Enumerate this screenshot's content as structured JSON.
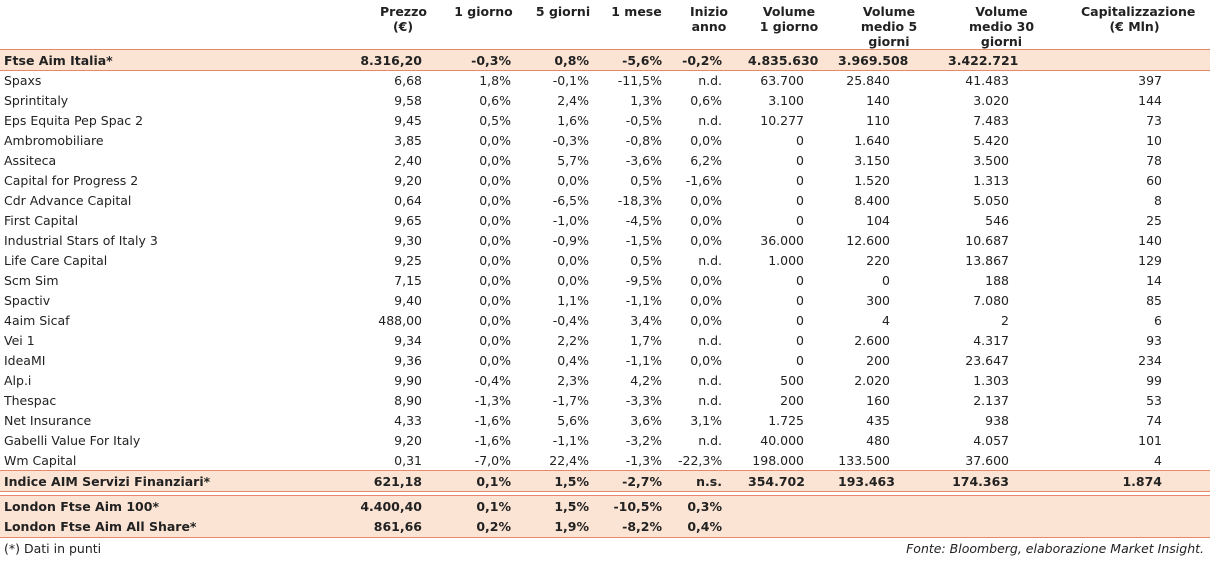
{
  "headers": {
    "name": "",
    "price": "Prezzo (€)",
    "d1": "1 giorno",
    "d5": "5 giorni",
    "m1": "1 mese",
    "ytd": "Inizio anno",
    "v1": "Volume 1 giorno",
    "v5": "Volume medio 5 giorni",
    "v30": "Volume medio 30 giorni",
    "cap": "Capitalizzazione (€ Mln)"
  },
  "top_index": {
    "name": "Ftse Aim Italia*",
    "price": "8.316,20",
    "d1": "-0,3%",
    "d5": "0,8%",
    "m1": "-5,6%",
    "ytd": "-0,2%",
    "v1": "4.835.630",
    "v5": "3.969.508",
    "v30": "3.422.721",
    "cap": ""
  },
  "rows": [
    {
      "name": "Spaxs",
      "price": "6,68",
      "d1": "1,8%",
      "d5": "-0,1%",
      "m1": "-11,5%",
      "ytd": "n.d.",
      "v1": "63.700",
      "v5": "25.840",
      "v30": "41.483",
      "cap": "397"
    },
    {
      "name": "Sprintitaly",
      "price": "9,58",
      "d1": "0,6%",
      "d5": "2,4%",
      "m1": "1,3%",
      "ytd": "0,6%",
      "v1": "3.100",
      "v5": "140",
      "v30": "3.020",
      "cap": "144"
    },
    {
      "name": "Eps Equita Pep Spac 2",
      "price": "9,45",
      "d1": "0,5%",
      "d5": "1,6%",
      "m1": "-0,5%",
      "ytd": "n.d.",
      "v1": "10.277",
      "v5": "110",
      "v30": "7.483",
      "cap": "73"
    },
    {
      "name": "Ambromobiliare",
      "price": "3,85",
      "d1": "0,0%",
      "d5": "-0,3%",
      "m1": "-0,8%",
      "ytd": "0,0%",
      "v1": "0",
      "v5": "1.640",
      "v30": "5.420",
      "cap": "10"
    },
    {
      "name": "Assiteca",
      "price": "2,40",
      "d1": "0,0%",
      "d5": "5,7%",
      "m1": "-3,6%",
      "ytd": "6,2%",
      "v1": "0",
      "v5": "3.150",
      "v30": "3.500",
      "cap": "78"
    },
    {
      "name": "Capital for Progress 2",
      "price": "9,20",
      "d1": "0,0%",
      "d5": "0,0%",
      "m1": "0,5%",
      "ytd": "-1,6%",
      "v1": "0",
      "v5": "1.520",
      "v30": "1.313",
      "cap": "60"
    },
    {
      "name": "Cdr Advance Capital",
      "price": "0,64",
      "d1": "0,0%",
      "d5": "-6,5%",
      "m1": "-18,3%",
      "ytd": "0,0%",
      "v1": "0",
      "v5": "8.400",
      "v30": "5.050",
      "cap": "8"
    },
    {
      "name": "First Capital",
      "price": "9,65",
      "d1": "0,0%",
      "d5": "-1,0%",
      "m1": "-4,5%",
      "ytd": "0,0%",
      "v1": "0",
      "v5": "104",
      "v30": "546",
      "cap": "25"
    },
    {
      "name": "Industrial Stars of Italy 3",
      "price": "9,30",
      "d1": "0,0%",
      "d5": "-0,9%",
      "m1": "-1,5%",
      "ytd": "0,0%",
      "v1": "36.000",
      "v5": "12.600",
      "v30": "10.687",
      "cap": "140"
    },
    {
      "name": "Life Care Capital",
      "price": "9,25",
      "d1": "0,0%",
      "d5": "0,0%",
      "m1": "0,5%",
      "ytd": "n.d.",
      "v1": "1.000",
      "v5": "220",
      "v30": "13.867",
      "cap": "129"
    },
    {
      "name": "Scm Sim",
      "price": "7,15",
      "d1": "0,0%",
      "d5": "0,0%",
      "m1": "-9,5%",
      "ytd": "0,0%",
      "v1": "0",
      "v5": "0",
      "v30": "188",
      "cap": "14"
    },
    {
      "name": "Spactiv",
      "price": "9,40",
      "d1": "0,0%",
      "d5": "1,1%",
      "m1": "-1,1%",
      "ytd": "0,0%",
      "v1": "0",
      "v5": "300",
      "v30": "7.080",
      "cap": "85"
    },
    {
      "name": "4aim Sicaf",
      "price": "488,00",
      "d1": "0,0%",
      "d5": "-0,4%",
      "m1": "3,4%",
      "ytd": "0,0%",
      "v1": "0",
      "v5": "4",
      "v30": "2",
      "cap": "6"
    },
    {
      "name": "Vei 1",
      "price": "9,34",
      "d1": "0,0%",
      "d5": "2,2%",
      "m1": "1,7%",
      "ytd": "n.d.",
      "v1": "0",
      "v5": "2.600",
      "v30": "4.317",
      "cap": "93"
    },
    {
      "name": "IdeaMI",
      "price": "9,36",
      "d1": "0,0%",
      "d5": "0,4%",
      "m1": "-1,1%",
      "ytd": "0,0%",
      "v1": "0",
      "v5": "200",
      "v30": "23.647",
      "cap": "234"
    },
    {
      "name": "Alp.i",
      "price": "9,90",
      "d1": "-0,4%",
      "d5": "2,3%",
      "m1": "4,2%",
      "ytd": "n.d.",
      "v1": "500",
      "v5": "2.020",
      "v30": "1.303",
      "cap": "99"
    },
    {
      "name": "Thespac",
      "price": "8,90",
      "d1": "-1,3%",
      "d5": "-1,7%",
      "m1": "-3,3%",
      "ytd": "n.d.",
      "v1": "200",
      "v5": "160",
      "v30": "2.137",
      "cap": "53"
    },
    {
      "name": "Net Insurance",
      "price": "4,33",
      "d1": "-1,6%",
      "d5": "5,6%",
      "m1": "3,6%",
      "ytd": "3,1%",
      "v1": "1.725",
      "v5": "435",
      "v30": "938",
      "cap": "74"
    },
    {
      "name": "Gabelli Value For Italy",
      "price": "9,20",
      "d1": "-1,6%",
      "d5": "-1,1%",
      "m1": "-3,2%",
      "ytd": "n.d.",
      "v1": "40.000",
      "v5": "480",
      "v30": "4.057",
      "cap": "101"
    },
    {
      "name": "Wm Capital",
      "price": "0,31",
      "d1": "-7,0%",
      "d5": "22,4%",
      "m1": "-1,3%",
      "ytd": "-22,3%",
      "v1": "198.000",
      "v5": "133.500",
      "v30": "37.600",
      "cap": "4"
    }
  ],
  "sector_index": {
    "name": "Indice AIM Servizi Finanziari*",
    "price": "621,18",
    "d1": "0,1%",
    "d5": "1,5%",
    "m1": "-2,7%",
    "ytd": "n.s.",
    "v1": "354.702",
    "v5": "193.463",
    "v30": "174.363",
    "cap": "1.874"
  },
  "london": [
    {
      "name": "London Ftse Aim 100*",
      "price": "4.400,40",
      "d1": "0,1%",
      "d5": "1,5%",
      "m1": "-10,5%",
      "ytd": "0,3%"
    },
    {
      "name": "London Ftse Aim All Share*",
      "price": "861,66",
      "d1": "0,2%",
      "d5": "1,9%",
      "m1": "-8,2%",
      "ytd": "0,4%"
    }
  ],
  "footnote": "(*) Dati in punti",
  "source": "Fonte: Bloomberg, elaborazione Market Insight.",
  "colors": {
    "accent_line": "#e8886b",
    "highlight_row": "#fbe4d4"
  }
}
